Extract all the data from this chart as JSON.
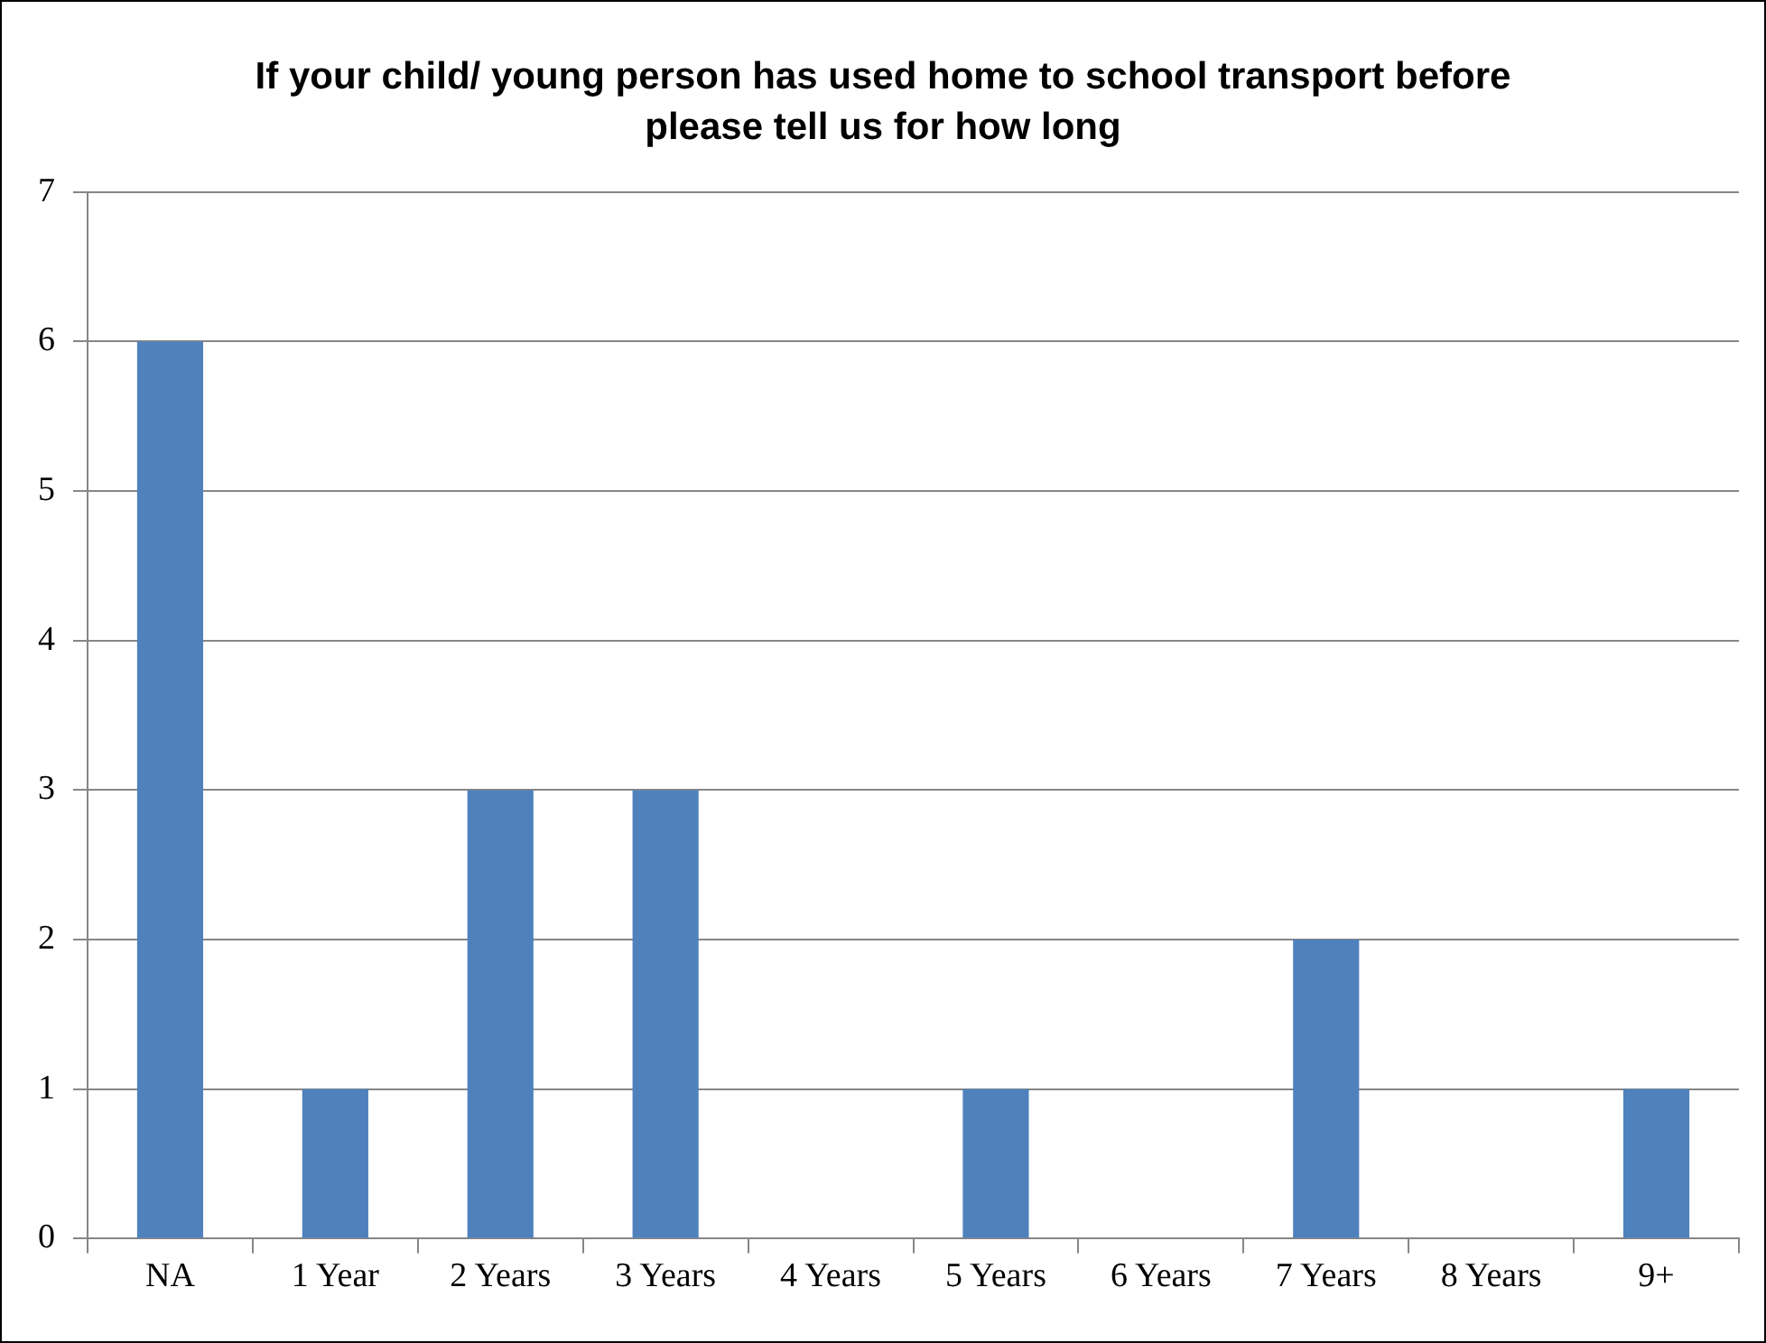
{
  "chart_data": {
    "type": "bar",
    "title": "If your child/ young person has used home to school transport before please tell us for how long",
    "categories": [
      "NA",
      "1 Year",
      "2 Years",
      "3 Years",
      "4 Years",
      "5 Years",
      "6 Years",
      "7 Years",
      "8 Years",
      "9+"
    ],
    "values": [
      6,
      1,
      3,
      3,
      0,
      1,
      0,
      2,
      0,
      1
    ],
    "color": "#4f81bd",
    "ylim": [
      0,
      7
    ],
    "yticks": [
      0,
      1,
      2,
      3,
      4,
      5,
      6,
      7
    ],
    "grid": "y",
    "legend": false
  }
}
